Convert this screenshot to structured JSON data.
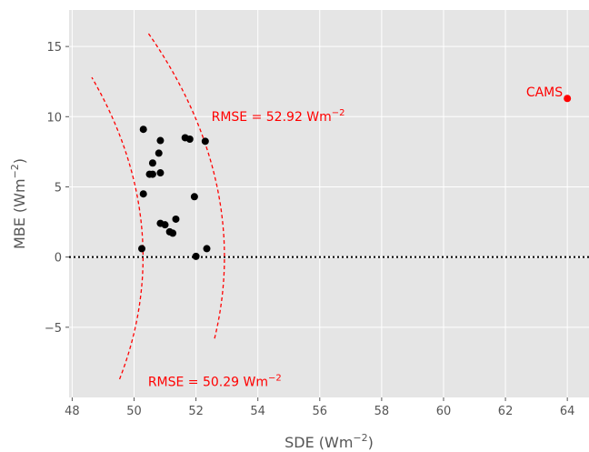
{
  "chart_data": {
    "type": "scatter",
    "xlim": [
      47.9,
      64.7
    ],
    "ylim": [
      -10,
      17.6
    ],
    "xticks": [
      48,
      50,
      52,
      54,
      56,
      58,
      60,
      62,
      64
    ],
    "yticks": [
      -5,
      0,
      5,
      10,
      15
    ],
    "xticks_text": [
      "48",
      "50",
      "52",
      "54",
      "56",
      "58",
      "60",
      "62",
      "64"
    ],
    "yticks_text": [
      "−5",
      "0",
      "5",
      "10",
      "15"
    ],
    "xlabel": {
      "base": "SDE (Wm",
      "exp": "−2",
      "close": ")"
    },
    "ylabel": {
      "base": "MBE (Wm",
      "exp": "−2",
      "close": ")"
    },
    "grid": true,
    "background": "#e5e5e5",
    "reference_line": {
      "y": 0,
      "style": "dotted",
      "color": "#000000"
    },
    "points_color": "#000000",
    "points": [
      [
        50.3,
        9.1
      ],
      [
        50.85,
        8.3
      ],
      [
        50.8,
        7.4
      ],
      [
        50.6,
        6.7
      ],
      [
        50.5,
        5.9
      ],
      [
        50.6,
        5.9
      ],
      [
        50.85,
        6.0
      ],
      [
        50.3,
        4.5
      ],
      [
        50.85,
        2.4
      ],
      [
        51.0,
        2.3
      ],
      [
        51.15,
        1.8
      ],
      [
        51.25,
        1.7
      ],
      [
        51.35,
        2.7
      ],
      [
        50.25,
        0.6
      ],
      [
        51.65,
        8.5
      ],
      [
        51.8,
        8.4
      ],
      [
        52.3,
        8.25
      ],
      [
        51.95,
        4.3
      ],
      [
        52.35,
        0.6
      ],
      [
        52.0,
        0.05
      ]
    ],
    "highlight": {
      "label": "CAMS",
      "x": 64.0,
      "y": 11.3,
      "color": "#ff0000"
    },
    "rmse_curves": [
      {
        "rmse": 52.92,
        "text": "RMSE = 52.92 Wm",
        "exp": "−2",
        "ymin": -5.8,
        "ymax": 16.0
      },
      {
        "rmse": 50.29,
        "text": "RMSE = 50.29 Wm",
        "exp": "−2",
        "ymin": -8.7,
        "ymax": 12.8
      }
    ],
    "curve_color": "#ff0000"
  }
}
